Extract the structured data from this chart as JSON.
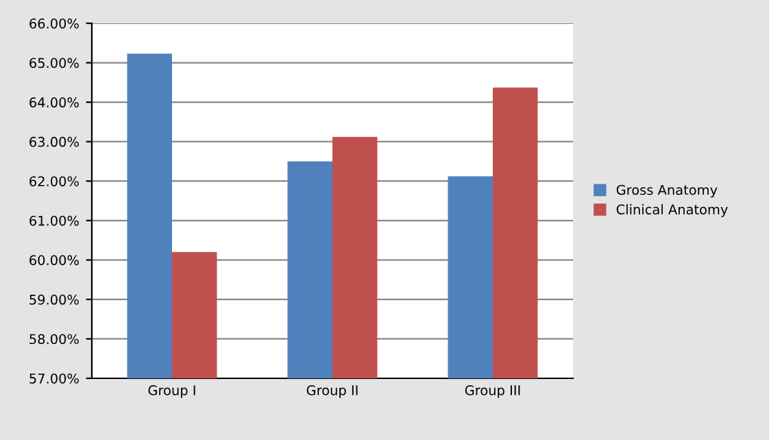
{
  "chart_data": {
    "type": "bar",
    "categories": [
      "Group I",
      "Group II",
      "Group III"
    ],
    "series": [
      {
        "name": "Gross Anatomy",
        "color": "#4f81bd",
        "values": [
          65.23,
          62.5,
          62.12
        ]
      },
      {
        "name": "Clinical Anatomy",
        "color": "#c0504d",
        "values": [
          60.2,
          63.12,
          64.37
        ]
      }
    ],
    "ylim": [
      57,
      66
    ],
    "yticks": [
      {
        "value": 57,
        "label": "57.00%"
      },
      {
        "value": 58,
        "label": "58.00%"
      },
      {
        "value": 59,
        "label": "59.00%"
      },
      {
        "value": 60,
        "label": "60.00%"
      },
      {
        "value": 61,
        "label": "61.00%"
      },
      {
        "value": 62,
        "label": "62.00%"
      },
      {
        "value": 63,
        "label": "63.00%"
      },
      {
        "value": 64,
        "label": "64.00%"
      },
      {
        "value": 65,
        "label": "65.00%"
      },
      {
        "value": 66,
        "label": "66.00%"
      }
    ],
    "grid": "y",
    "legend": "right"
  }
}
